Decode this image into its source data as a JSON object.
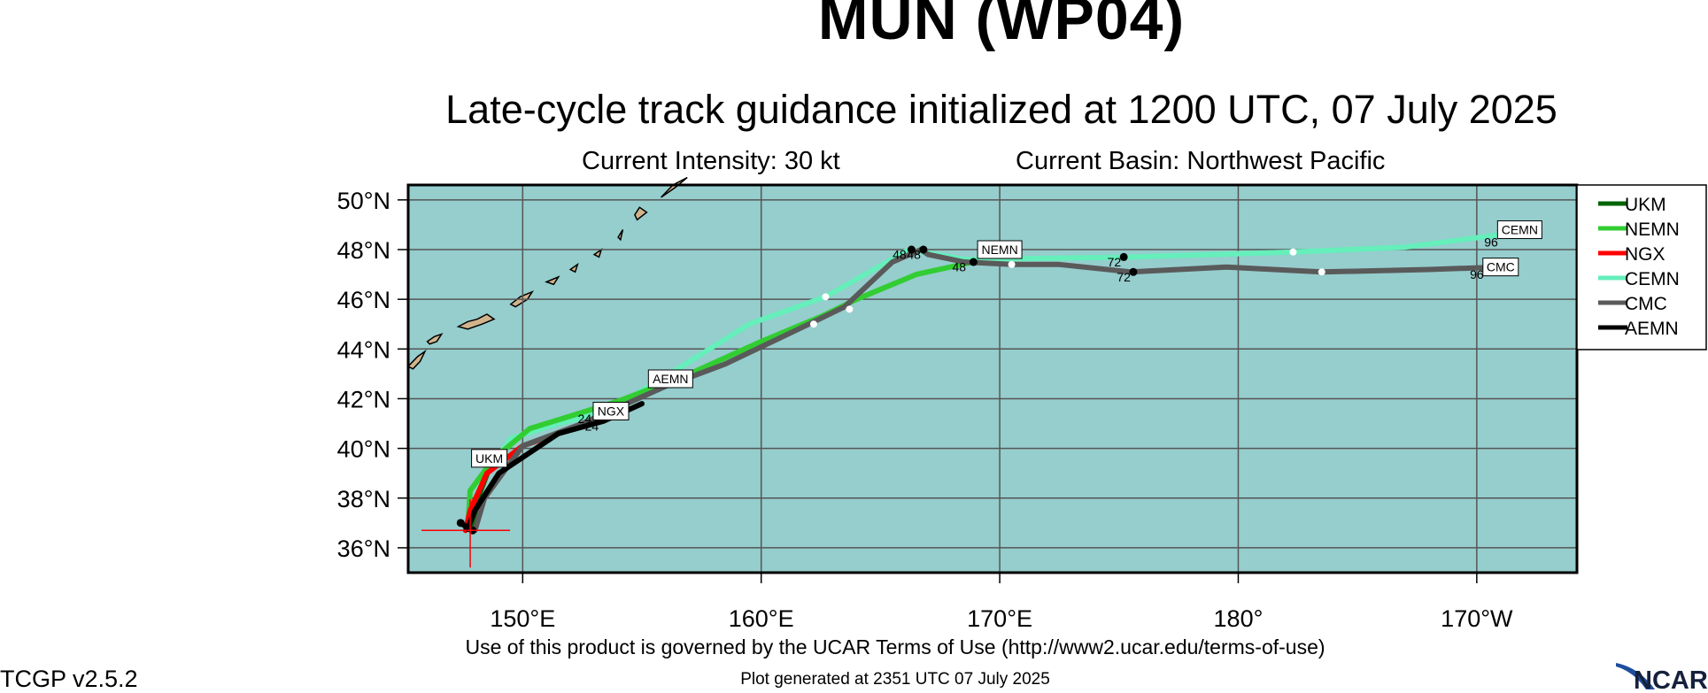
{
  "header": {
    "title": "MUN (WP04)",
    "subtitle": "Late-cycle track guidance initialized at 1200 UTC, 07 July 2025",
    "intensity": "Current Intensity: 30 kt",
    "basin": "Current Basin: Northwest Pacific"
  },
  "footer": {
    "terms": "Use of this product is governed by the UCAR Terms of Use (http://www2.ucar.edu/terms-of-use)",
    "generated": "Plot generated at 2351 UTC   07 July 2025",
    "version": "TCGP v2.5.2",
    "logo_text": "NCAR"
  },
  "map": {
    "ocean_color": "#96cdcd",
    "land_color": "#d2b48c",
    "grid_color": "#555555",
    "lat_labels": [
      "50°N",
      "48°N",
      "46°N",
      "44°N",
      "42°N",
      "40°N",
      "38°N",
      "36°N"
    ],
    "lat_values": [
      50,
      48,
      46,
      44,
      42,
      40,
      38,
      36
    ],
    "lon_labels": [
      "150°E",
      "160°E",
      "170°E",
      "180°",
      "170°W"
    ],
    "lon_values": [
      150,
      160,
      170,
      180,
      190
    ],
    "current_position": {
      "lon": 147.8,
      "lat": 36.7
    }
  },
  "legend": [
    {
      "name": "UKM",
      "color": "#006400"
    },
    {
      "name": "NEMN",
      "color": "#32cd32"
    },
    {
      "name": "NGX",
      "color": "#ff0000"
    },
    {
      "name": "CEMN",
      "color": "#66eebb"
    },
    {
      "name": "CMC",
      "color": "#5a5a5a"
    },
    {
      "name": "AEMN",
      "color": "#000000"
    }
  ],
  "tracks": [
    {
      "name": "CEMN",
      "color": "#66eebb",
      "points": [
        [
          147.8,
          36.8
        ],
        [
          148.2,
          38.6
        ],
        [
          149.5,
          40.4
        ],
        [
          151.5,
          41.0
        ],
        [
          153.6,
          41.5
        ],
        [
          156.5,
          43.2
        ],
        [
          159.5,
          45.0
        ],
        [
          162.7,
          46.1
        ],
        [
          166.2,
          48.0
        ],
        [
          168.5,
          47.6
        ],
        [
          175.5,
          47.7
        ],
        [
          182.3,
          47.9
        ],
        [
          187.0,
          48.1
        ],
        [
          191.0,
          48.6
        ]
      ],
      "day_points": [
        [
          162.7,
          46.1
        ],
        [
          182.3,
          47.9
        ]
      ]
    },
    {
      "name": "UKM",
      "color": "#006400",
      "points": [
        [
          147.9,
          36.7
        ],
        [
          148.2,
          38.2
        ],
        [
          148.6,
          39.2
        ]
      ],
      "day_points": []
    },
    {
      "name": "NEMN",
      "color": "#32cd32",
      "points": [
        [
          147.7,
          36.8
        ],
        [
          147.8,
          38.3
        ],
        [
          148.8,
          39.6
        ],
        [
          150.3,
          40.8
        ],
        [
          152.0,
          41.3
        ],
        [
          154.0,
          41.9
        ],
        [
          157.0,
          43.0
        ],
        [
          160.0,
          44.3
        ],
        [
          162.5,
          45.3
        ],
        [
          164.0,
          46.0
        ],
        [
          166.5,
          47.0
        ],
        [
          168.9,
          47.5
        ]
      ],
      "day_points": [
        [
          163.7,
          45.6
        ]
      ]
    },
    {
      "name": "NGX",
      "color": "#ff0000",
      "points": [
        [
          147.6,
          36.7
        ],
        [
          147.8,
          37.5
        ],
        [
          148.5,
          39.0
        ],
        [
          150.0,
          40.1
        ],
        [
          151.5,
          40.6
        ],
        [
          153.2,
          41.1
        ]
      ],
      "day_points": []
    },
    {
      "name": "CMC",
      "color": "#5a5a5a",
      "points": [
        [
          148.0,
          36.7
        ],
        [
          148.4,
          38.0
        ],
        [
          150.0,
          40.1
        ],
        [
          152.5,
          41.0
        ],
        [
          156.0,
          42.5
        ],
        [
          158.5,
          43.4
        ],
        [
          162.0,
          45.0
        ],
        [
          163.5,
          45.7
        ],
        [
          165.5,
          47.5
        ],
        [
          166.7,
          48.0
        ],
        [
          167.0,
          47.8
        ],
        [
          168.5,
          47.5
        ],
        [
          170.5,
          47.4
        ],
        [
          172.5,
          47.4
        ],
        [
          175.5,
          47.1
        ],
        [
          179.5,
          47.3
        ],
        [
          183.5,
          47.1
        ],
        [
          188.0,
          47.2
        ],
        [
          191.0,
          47.3
        ]
      ],
      "day_points": [
        [
          162.2,
          45.0
        ],
        [
          170.5,
          47.4
        ],
        [
          183.5,
          47.1
        ]
      ]
    },
    {
      "name": "AEMN",
      "color": "#000000",
      "points": [
        [
          147.4,
          37.0
        ],
        [
          147.7,
          36.8
        ],
        [
          148.0,
          37.5
        ],
        [
          149.0,
          39.0
        ],
        [
          151.5,
          40.6
        ],
        [
          153.4,
          41.1
        ],
        [
          155.0,
          41.8
        ]
      ],
      "day_points": []
    }
  ],
  "dots": [
    [
      147.4,
      37.0
    ],
    [
      147.7,
      36.8
    ],
    [
      147.9,
      36.7
    ],
    [
      166.3,
      48.0
    ],
    [
      166.8,
      48.0
    ],
    [
      168.9,
      47.5
    ],
    [
      175.2,
      47.7
    ],
    [
      175.6,
      47.1
    ],
    [
      191.2,
      48.6
    ],
    [
      191.2,
      47.3
    ]
  ],
  "track_labels": [
    {
      "text": "UKM",
      "lon": 148.6,
      "lat": 39.6
    },
    {
      "text": "NGX",
      "lon": 153.7,
      "lat": 41.5
    },
    {
      "text": "AEMN",
      "lon": 156.2,
      "lat": 42.8
    },
    {
      "text": "NEMN",
      "lon": 170.0,
      "lat": 48.0
    },
    {
      "text": "CMC",
      "lon": 191.0,
      "lat": 47.3
    },
    {
      "text": "CEMN",
      "lon": 191.8,
      "lat": 48.8
    }
  ],
  "hour_labels": [
    {
      "text": "24",
      "lon": 152.6,
      "lat": 41.2
    },
    {
      "text": "24",
      "lon": 152.9,
      "lat": 40.9
    },
    {
      "text": "48",
      "lon": 165.8,
      "lat": 47.8
    },
    {
      "text": "48",
      "lon": 166.4,
      "lat": 47.8
    },
    {
      "text": "48",
      "lon": 168.3,
      "lat": 47.3
    },
    {
      "text": "72",
      "lon": 174.8,
      "lat": 47.5
    },
    {
      "text": "72",
      "lon": 175.2,
      "lat": 46.9
    },
    {
      "text": "96",
      "lon": 190.6,
      "lat": 48.3
    },
    {
      "text": "96",
      "lon": 190.0,
      "lat": 47.0
    }
  ],
  "land_outlines": [
    [
      [
        145.2,
        43.3
      ],
      [
        145.4,
        43.5
      ],
      [
        145.6,
        43.7
      ],
      [
        145.9,
        43.9
      ],
      [
        145.7,
        43.5
      ],
      [
        145.4,
        43.2
      ]
    ],
    [
      [
        146.0,
        44.3
      ],
      [
        146.3,
        44.5
      ],
      [
        146.6,
        44.6
      ],
      [
        146.4,
        44.3
      ],
      [
        146.1,
        44.2
      ]
    ],
    [
      [
        147.3,
        44.9
      ],
      [
        147.7,
        45.1
      ],
      [
        148.1,
        45.2
      ],
      [
        148.5,
        45.4
      ],
      [
        148.8,
        45.2
      ],
      [
        148.3,
        45.0
      ],
      [
        147.7,
        44.8
      ]
    ],
    [
      [
        149.5,
        45.8
      ],
      [
        149.9,
        46.1
      ],
      [
        150.4,
        46.3
      ],
      [
        150.2,
        46.0
      ],
      [
        149.7,
        45.7
      ]
    ],
    [
      [
        151.0,
        46.7
      ],
      [
        151.5,
        46.9
      ],
      [
        151.3,
        46.6
      ]
    ],
    [
      [
        152.0,
        47.2
      ],
      [
        152.3,
        47.4
      ],
      [
        152.2,
        47.1
      ]
    ],
    [
      [
        153.0,
        47.8
      ],
      [
        153.3,
        48.0
      ],
      [
        153.2,
        47.7
      ]
    ],
    [
      [
        154.0,
        48.5
      ],
      [
        154.2,
        48.8
      ],
      [
        154.1,
        48.4
      ]
    ],
    [
      [
        154.8,
        49.2
      ],
      [
        155.2,
        49.5
      ],
      [
        154.9,
        49.7
      ],
      [
        154.7,
        49.4
      ]
    ],
    [
      [
        155.8,
        50.1
      ],
      [
        156.4,
        50.5
      ],
      [
        156.9,
        50.9
      ],
      [
        156.3,
        50.6
      ]
    ]
  ]
}
